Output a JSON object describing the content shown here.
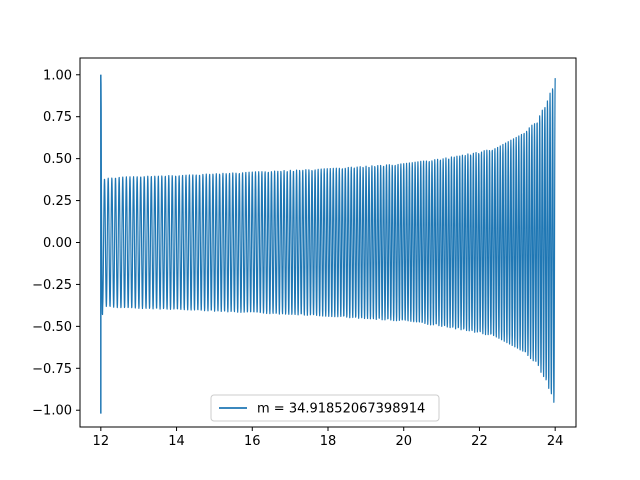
{
  "chart_data": {
    "type": "line",
    "title": "",
    "xlabel": "",
    "ylabel": "",
    "xlim": [
      11.45,
      24.55
    ],
    "ylim": [
      -1.1,
      1.1
    ],
    "x_ticks": [
      12,
      14,
      16,
      18,
      20,
      22,
      24
    ],
    "y_ticks": [
      -1.0,
      -0.75,
      -0.5,
      -0.25,
      0.0,
      0.25,
      0.5,
      0.75,
      1.0
    ],
    "x_tick_labels": [
      "12",
      "14",
      "16",
      "18",
      "20",
      "22",
      "24"
    ],
    "y_tick_labels": [
      "−1.00",
      "−0.75",
      "−0.50",
      "−0.25",
      "0.00",
      "0.25",
      "0.50",
      "0.75",
      "1.00"
    ],
    "grid": false,
    "legend_position": "bottom-center",
    "series": [
      {
        "name": "m = 34.91852067398914",
        "color": "#1f77b4",
        "x_range": [
          12,
          24
        ],
        "cycles": 150,
        "envelope": {
          "x": [
            12.0,
            12.05,
            12.5,
            14,
            16,
            18,
            20,
            21,
            22,
            22.5,
            23,
            23.5,
            23.8,
            24.0
          ],
          "amplitude": [
            1.0,
            0.38,
            0.39,
            0.4,
            0.42,
            0.44,
            0.47,
            0.5,
            0.54,
            0.57,
            0.63,
            0.72,
            0.85,
            0.98
          ]
        }
      }
    ]
  }
}
